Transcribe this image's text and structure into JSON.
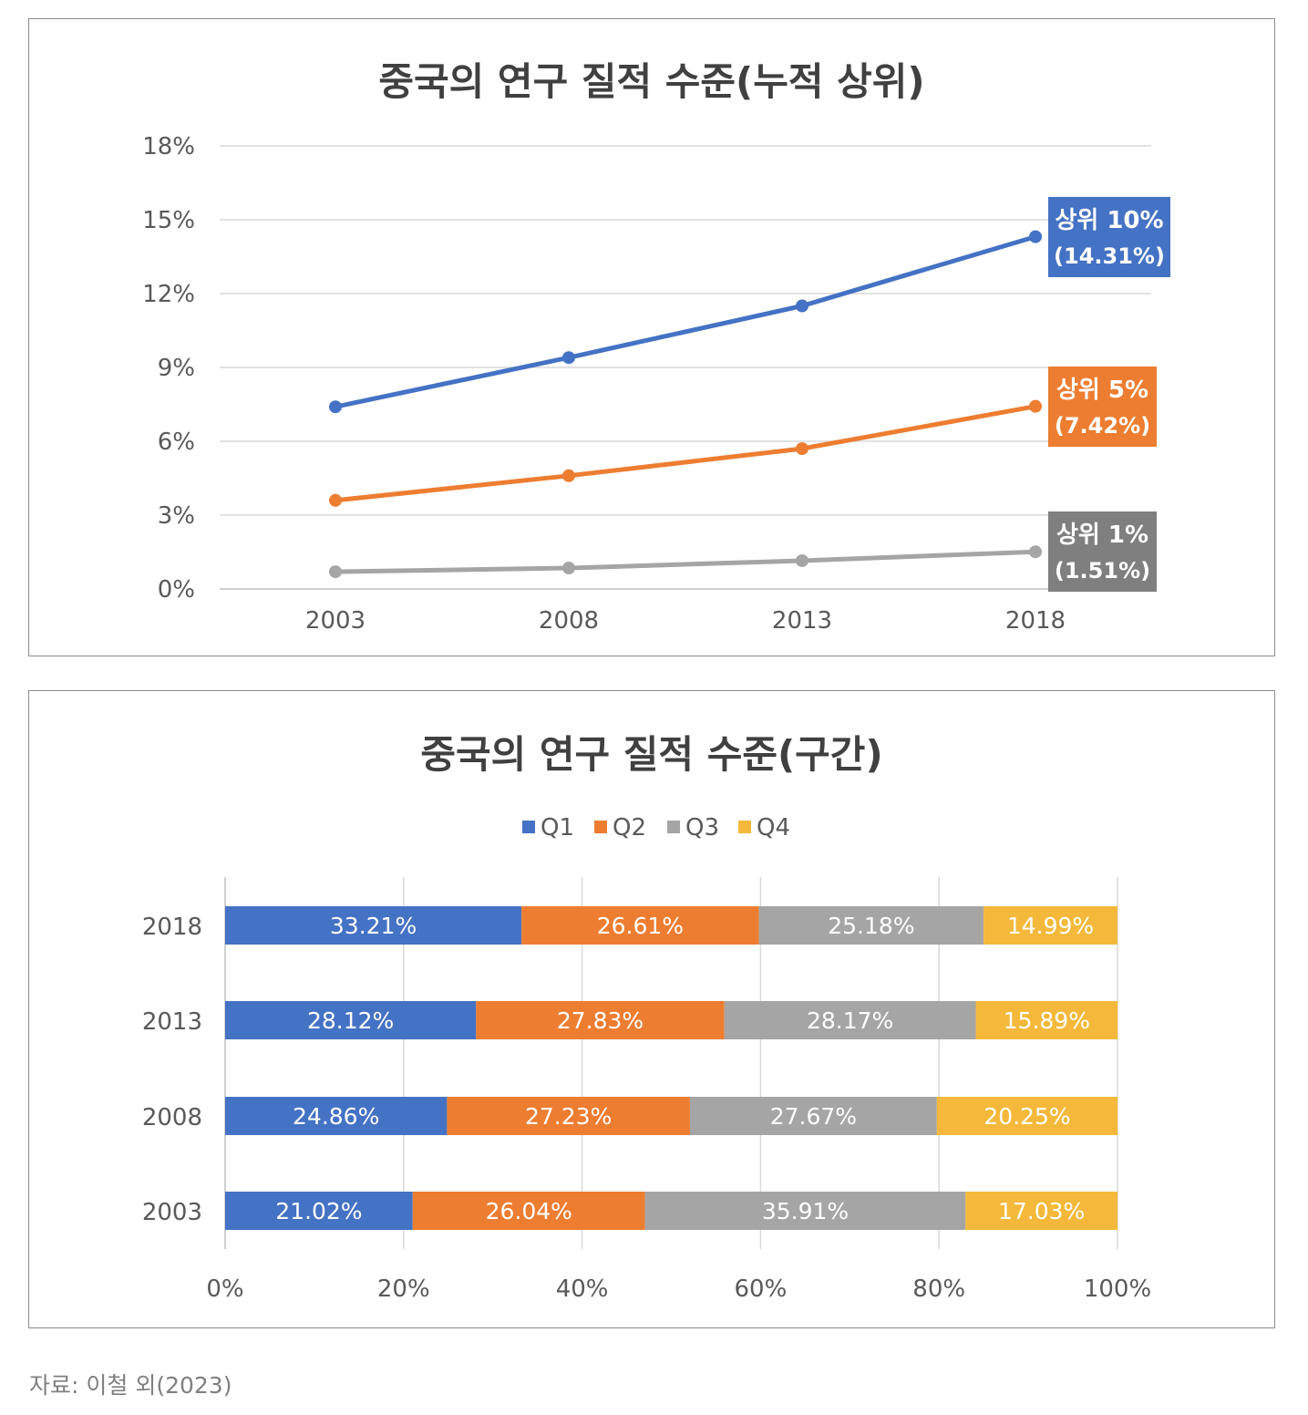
{
  "colors": {
    "q1": "#4472c4",
    "q2": "#ed7d31",
    "q3": "#a5a5a5",
    "q4": "#f4b93b",
    "grid": "#d9d9d9",
    "text": "#595959",
    "title": "#404040",
    "label_top1": "#7f7f7f"
  },
  "source": "자료: 이철 외(2023)",
  "chart_data": [
    {
      "type": "line",
      "title": "중국의 연구 질적 수준(누적 상위)",
      "x": [
        "2003",
        "2008",
        "2013",
        "2018"
      ],
      "y_ticks": [
        "0%",
        "3%",
        "6%",
        "9%",
        "12%",
        "15%",
        "18%"
      ],
      "ylim": [
        0,
        18
      ],
      "grid": true,
      "series": [
        {
          "name": "상위 10%",
          "values": [
            7.4,
            9.4,
            11.5,
            14.31
          ],
          "end_label": [
            "상위 10%",
            "(14.31%)"
          ],
          "color": "#4472c4"
        },
        {
          "name": "상위 5%",
          "values": [
            3.6,
            4.6,
            5.7,
            7.42
          ],
          "end_label": [
            "상위 5%",
            "(7.42%)"
          ],
          "color": "#ed7d31"
        },
        {
          "name": "상위 1%",
          "values": [
            0.7,
            0.85,
            1.15,
            1.51
          ],
          "end_label": [
            "상위 1%",
            "(1.51%)"
          ],
          "color": "#a5a5a5",
          "label_color": "#7f7f7f"
        }
      ]
    },
    {
      "type": "bar",
      "orientation": "horizontal",
      "stacked": "100%",
      "title": "중국의 연구 질적 수준(구간)",
      "legend_position": "top",
      "categories": [
        "2018",
        "2013",
        "2008",
        "2003"
      ],
      "x_ticks": [
        "0%",
        "20%",
        "40%",
        "60%",
        "80%",
        "100%"
      ],
      "xlim": [
        0,
        100
      ],
      "grid": true,
      "series": [
        {
          "name": "Q1",
          "color": "#4472c4",
          "values": [
            33.21,
            28.12,
            24.86,
            21.02
          ],
          "labels": [
            "33.21%",
            "28.12%",
            "24.86%",
            "21.02%"
          ]
        },
        {
          "name": "Q2",
          "color": "#ed7d31",
          "values": [
            26.61,
            27.83,
            27.23,
            26.04
          ],
          "labels": [
            "26.61%",
            "27.83%",
            "27.23%",
            "26.04%"
          ]
        },
        {
          "name": "Q3",
          "color": "#a5a5a5",
          "values": [
            25.18,
            28.17,
            27.67,
            35.91
          ],
          "labels": [
            "25.18%",
            "28.17%",
            "27.67%",
            "35.91%"
          ]
        },
        {
          "name": "Q4",
          "color": "#f4b93b",
          "values": [
            14.99,
            15.89,
            20.25,
            17.03
          ],
          "labels": [
            "14.99%",
            "15.89%",
            "20.25%",
            "17.03%"
          ]
        }
      ]
    }
  ]
}
